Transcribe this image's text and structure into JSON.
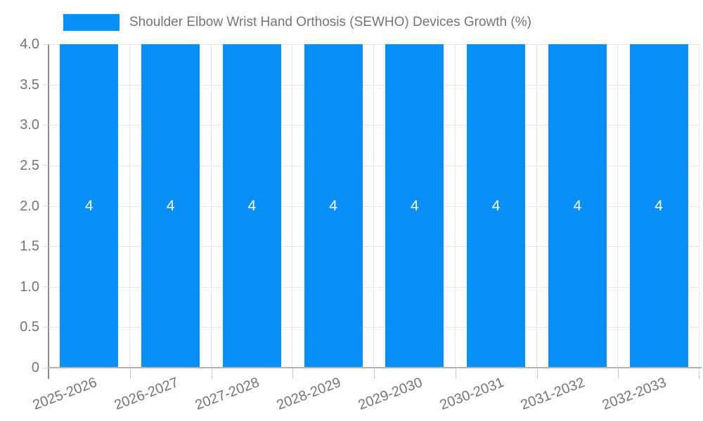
{
  "chart_data": {
    "type": "bar",
    "title": "Shoulder Elbow Wrist Hand Orthosis (SEWHO) Devices Growth (%)",
    "categories": [
      "2025-2026",
      "2026-2027",
      "2027-2028",
      "2028-2029",
      "2029-2030",
      "2030-2031",
      "2031-2032",
      "2032-2033"
    ],
    "series": [
      {
        "name": "Shoulder Elbow Wrist Hand Orthosis (SEWHO) Devices Growth (%)",
        "values": [
          4,
          4,
          4,
          4,
          4,
          4,
          4,
          4
        ]
      }
    ],
    "bar_value_labels": [
      "4",
      "4",
      "4",
      "4",
      "4",
      "4",
      "4",
      "4"
    ],
    "xlabel": "",
    "ylabel": "",
    "ylim": [
      0,
      4
    ],
    "ytick_step": 0.5,
    "ytick_labels": [
      "0",
      "0.5",
      "1.0",
      "1.5",
      "2.0",
      "2.5",
      "3.0",
      "3.5",
      "4.0"
    ],
    "grid": true,
    "legend_position": "top",
    "colors": {
      "bar": "#0890F8",
      "grid_line": "#e6e6e6",
      "x_axis_line": "#b3b3b3",
      "y_axis_line": "#8c8c8c",
      "axis_text": "#757575",
      "bar_label_text": "#ffffff",
      "background": "#ffffff"
    }
  }
}
